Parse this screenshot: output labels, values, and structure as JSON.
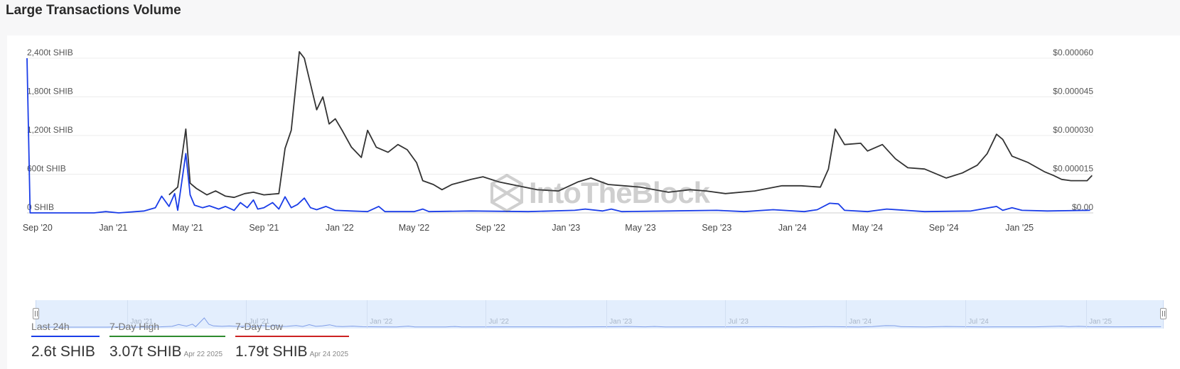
{
  "page": {
    "title": "Large Transactions Volume"
  },
  "watermark": "IntoTheBlock",
  "chart_data": {
    "type": "line",
    "title": "Large Transactions Volume",
    "x_ticks": [
      "Sep '20",
      "Jan '21",
      "May '21",
      "Sep '21",
      "Jan '22",
      "May '22",
      "Sep '22",
      "Jan '23",
      "May '23",
      "Sep '23",
      "Jan '24",
      "May '24",
      "Sep '24",
      "Jan '25"
    ],
    "y_left_ticks": [
      "0 SHIB",
      "600t SHIB",
      "1,200t SHIB",
      "1,800t SHIB",
      "2,400t SHIB"
    ],
    "y_right_ticks": [
      "$0.00",
      "$0.000015",
      "$0.000030",
      "$0.000045",
      "$0.000060"
    ],
    "y_left_range": [
      0,
      2400
    ],
    "y_right_range": [
      0,
      6e-05
    ],
    "grid": true,
    "colors": {
      "volume": "#1a3de8",
      "price": "#333333",
      "high": "#2e8b2e",
      "low": "#cc2222"
    },
    "series": [
      {
        "axis": "left",
        "unit": "t SHIB",
        "points": [
          [
            "2020-08-15",
            2400
          ],
          [
            "2020-08-20",
            0
          ],
          [
            "2020-12-01",
            0
          ],
          [
            "2020-12-20",
            20
          ],
          [
            "2021-01-10",
            0
          ],
          [
            "2021-02-20",
            30
          ],
          [
            "2021-03-10",
            80
          ],
          [
            "2021-03-20",
            260
          ],
          [
            "2021-04-01",
            100
          ],
          [
            "2021-04-10",
            300
          ],
          [
            "2021-04-15",
            40
          ],
          [
            "2021-04-28",
            920
          ],
          [
            "2021-05-05",
            280
          ],
          [
            "2021-05-12",
            120
          ],
          [
            "2021-05-25",
            80
          ],
          [
            "2021-06-05",
            110
          ],
          [
            "2021-06-20",
            60
          ],
          [
            "2021-07-01",
            100
          ],
          [
            "2021-07-15",
            40
          ],
          [
            "2021-07-25",
            160
          ],
          [
            "2021-08-05",
            80
          ],
          [
            "2021-08-15",
            200
          ],
          [
            "2021-08-22",
            60
          ],
          [
            "2021-09-01",
            80
          ],
          [
            "2021-09-15",
            160
          ],
          [
            "2021-09-25",
            60
          ],
          [
            "2021-10-05",
            250
          ],
          [
            "2021-10-15",
            80
          ],
          [
            "2021-10-25",
            130
          ],
          [
            "2021-11-05",
            230
          ],
          [
            "2021-11-15",
            80
          ],
          [
            "2021-11-25",
            50
          ],
          [
            "2021-12-10",
            100
          ],
          [
            "2021-12-25",
            40
          ],
          [
            "2022-01-20",
            30
          ],
          [
            "2022-02-15",
            20
          ],
          [
            "2022-03-05",
            100
          ],
          [
            "2022-03-15",
            20
          ],
          [
            "2022-05-01",
            20
          ],
          [
            "2022-05-15",
            60
          ],
          [
            "2022-05-25",
            20
          ],
          [
            "2022-08-01",
            30
          ],
          [
            "2022-11-01",
            20
          ],
          [
            "2023-01-15",
            40
          ],
          [
            "2023-02-01",
            60
          ],
          [
            "2023-03-01",
            30
          ],
          [
            "2023-03-15",
            60
          ],
          [
            "2023-04-01",
            20
          ],
          [
            "2023-06-15",
            30
          ],
          [
            "2023-09-01",
            40
          ],
          [
            "2023-10-15",
            20
          ],
          [
            "2023-12-01",
            50
          ],
          [
            "2024-01-20",
            20
          ],
          [
            "2024-02-10",
            50
          ],
          [
            "2024-03-01",
            150
          ],
          [
            "2024-03-15",
            140
          ],
          [
            "2024-03-25",
            40
          ],
          [
            "2024-05-01",
            20
          ],
          [
            "2024-06-01",
            60
          ],
          [
            "2024-08-01",
            20
          ],
          [
            "2024-10-15",
            30
          ],
          [
            "2024-11-25",
            100
          ],
          [
            "2024-12-05",
            40
          ],
          [
            "2024-12-20",
            80
          ],
          [
            "2025-01-05",
            40
          ],
          [
            "2025-02-15",
            30
          ],
          [
            "2025-04-25",
            40
          ]
        ]
      },
      {
        "axis": "right",
        "unit": "$",
        "points": [
          [
            "2021-04-01",
            7e-06
          ],
          [
            "2021-04-15",
            1e-05
          ],
          [
            "2021-04-28",
            3.25e-05
          ],
          [
            "2021-05-05",
            1.15e-05
          ],
          [
            "2021-05-15",
            9.5e-06
          ],
          [
            "2021-06-01",
            7e-06
          ],
          [
            "2021-06-15",
            8.5e-06
          ],
          [
            "2021-07-01",
            6.5e-06
          ],
          [
            "2021-07-15",
            6e-06
          ],
          [
            "2021-08-01",
            7.5e-06
          ],
          [
            "2021-08-15",
            8e-06
          ],
          [
            "2021-09-01",
            7e-06
          ],
          [
            "2021-09-25",
            7.5e-06
          ],
          [
            "2021-10-05",
            2.5e-05
          ],
          [
            "2021-10-15",
            3.2e-05
          ],
          [
            "2021-10-28",
            6.25e-05
          ],
          [
            "2021-11-05",
            6e-05
          ],
          [
            "2021-11-15",
            5e-05
          ],
          [
            "2021-11-25",
            4e-05
          ],
          [
            "2021-12-05",
            4.5e-05
          ],
          [
            "2021-12-15",
            3.45e-05
          ],
          [
            "2021-12-25",
            3.65e-05
          ],
          [
            "2022-01-05",
            3.2e-05
          ],
          [
            "2022-01-20",
            2.55e-05
          ],
          [
            "2022-02-05",
            2.15e-05
          ],
          [
            "2022-02-15",
            3.2e-05
          ],
          [
            "2022-03-01",
            2.55e-05
          ],
          [
            "2022-03-20",
            2.35e-05
          ],
          [
            "2022-04-05",
            2.65e-05
          ],
          [
            "2022-04-20",
            2.45e-05
          ],
          [
            "2022-05-05",
            1.95e-05
          ],
          [
            "2022-05-15",
            1.25e-05
          ],
          [
            "2022-06-01",
            1.1e-05
          ],
          [
            "2022-06-15",
            9e-06
          ],
          [
            "2022-07-01",
            1.1e-05
          ],
          [
            "2022-08-01",
            1.3e-05
          ],
          [
            "2022-08-20",
            1.4e-05
          ],
          [
            "2022-09-15",
            1.2e-05
          ],
          [
            "2022-10-15",
            1.05e-05
          ],
          [
            "2022-11-15",
            9e-06
          ],
          [
            "2022-12-20",
            8.5e-06
          ],
          [
            "2023-01-20",
            1.2e-05
          ],
          [
            "2023-02-10",
            1.35e-05
          ],
          [
            "2023-03-10",
            1.1e-05
          ],
          [
            "2023-05-01",
            1e-05
          ],
          [
            "2023-06-15",
            8e-06
          ],
          [
            "2023-07-20",
            9e-06
          ],
          [
            "2023-08-15",
            8.5e-06
          ],
          [
            "2023-09-15",
            7.5e-06
          ],
          [
            "2023-11-01",
            8.5e-06
          ],
          [
            "2023-12-15",
            1.05e-05
          ],
          [
            "2024-01-15",
            1.05e-05
          ],
          [
            "2024-02-15",
            1e-05
          ],
          [
            "2024-02-28",
            1.7e-05
          ],
          [
            "2024-03-10",
            3.25e-05
          ],
          [
            "2024-03-25",
            2.65e-05
          ],
          [
            "2024-04-20",
            2.7e-05
          ],
          [
            "2024-05-01",
            2.4e-05
          ],
          [
            "2024-05-25",
            2.65e-05
          ],
          [
            "2024-06-15",
            2.1e-05
          ],
          [
            "2024-07-05",
            1.75e-05
          ],
          [
            "2024-08-01",
            1.7e-05
          ],
          [
            "2024-09-05",
            1.35e-05
          ],
          [
            "2024-10-01",
            1.55e-05
          ],
          [
            "2024-10-25",
            1.85e-05
          ],
          [
            "2024-11-10",
            2.3e-05
          ],
          [
            "2024-11-25",
            3.05e-05
          ],
          [
            "2024-12-05",
            2.85e-05
          ],
          [
            "2024-12-20",
            2.2e-05
          ],
          [
            "2025-01-15",
            1.95e-05
          ],
          [
            "2025-02-10",
            1.6e-05
          ],
          [
            "2025-02-25",
            1.45e-05
          ],
          [
            "2025-03-10",
            1.3e-05
          ],
          [
            "2025-03-25",
            1.25e-05
          ],
          [
            "2025-04-20",
            1.25e-05
          ],
          [
            "2025-04-28",
            1.45e-05
          ]
        ]
      }
    ]
  },
  "navigator": {
    "labels": [
      "Jan '21",
      "Jul '21",
      "Jan '22",
      "Jul '22",
      "Jan '23",
      "Jul '23",
      "Jan '24",
      "Jul '24",
      "Jan '25"
    ]
  },
  "stats": {
    "last24h": {
      "label": "Last 24h",
      "value": "2.6t SHIB"
    },
    "high": {
      "label": "7-Day High",
      "value": "3.07t SHIB",
      "date": "Apr 22 2025"
    },
    "low": {
      "label": "7-Day Low",
      "value": "1.79t SHIB",
      "date": "Apr 24 2025"
    }
  }
}
